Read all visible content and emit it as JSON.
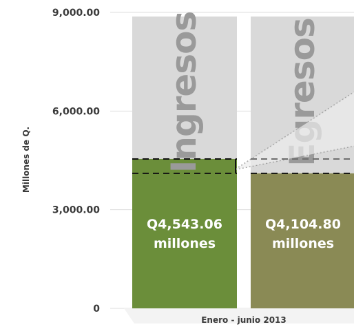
{
  "chart_data": {
    "type": "bar",
    "ylabel": "Millones de Q.",
    "ylim": [
      0,
      9000
    ],
    "yticks": [
      0,
      3000,
      6000,
      9000
    ],
    "ytick_labels": [
      "0",
      "3,000.00",
      "6,000.00",
      "9,000.00"
    ],
    "x_category_label": "Enero - junio 2013",
    "grid": true,
    "series": [
      {
        "name": "Ingresos",
        "value": 4543.06,
        "value_label_line1": "Q4,543.06",
        "value_label_line2": "millones",
        "fill_color": "#6b8e3a",
        "background_color": "#d9d9d9"
      },
      {
        "name": "Egresos",
        "value": 4104.8,
        "value_label_line1": "Q4,104.80",
        "value_label_line2": "millones",
        "fill_color": "#8a8a55",
        "background_color": "#d9d9d9"
      }
    ],
    "colors": {
      "gridline": "#dddddd",
      "axis_text": "#3a3a3a",
      "dashed_guide": "#111111"
    }
  }
}
